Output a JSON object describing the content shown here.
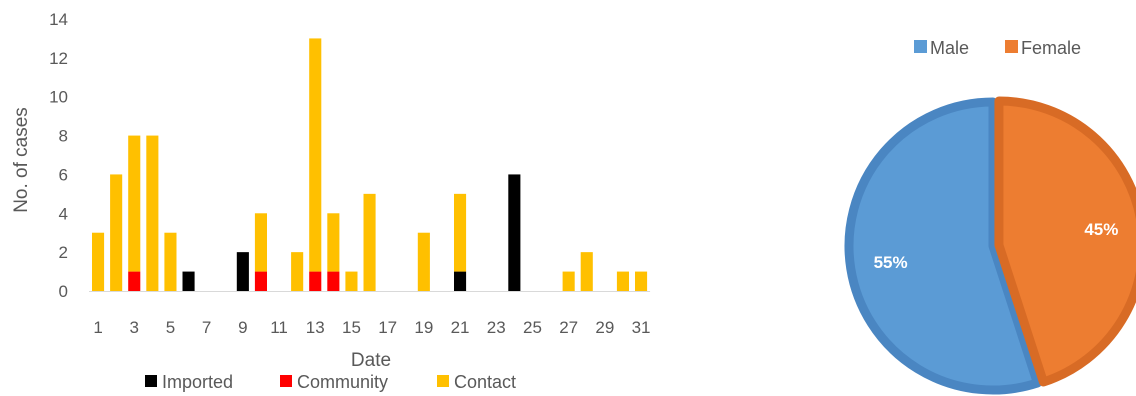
{
  "chart_data": [
    {
      "type": "bar",
      "stacked": true,
      "xlabel": "Date",
      "ylabel": "No. of cases",
      "ylim": [
        0,
        14
      ],
      "yticks": [
        0,
        2,
        4,
        6,
        8,
        10,
        12,
        14
      ],
      "categories": [
        1,
        2,
        3,
        4,
        5,
        6,
        7,
        8,
        9,
        10,
        11,
        12,
        13,
        14,
        15,
        16,
        17,
        18,
        19,
        20,
        21,
        22,
        23,
        24,
        25,
        26,
        27,
        28,
        29,
        30,
        31
      ],
      "xtick_labels": [
        "1",
        "3",
        "5",
        "7",
        "9",
        "11",
        "13",
        "15",
        "17",
        "19",
        "21",
        "23",
        "25",
        "27",
        "29",
        "31"
      ],
      "grid": false,
      "legend_position": "bottom",
      "series": [
        {
          "name": "Imported",
          "color": "#000000",
          "values": [
            0,
            0,
            0,
            0,
            0,
            1,
            0,
            0,
            2,
            0,
            0,
            0,
            0,
            0,
            0,
            0,
            0,
            0,
            0,
            0,
            1,
            0,
            0,
            6,
            0,
            0,
            0,
            0,
            0,
            0,
            0
          ]
        },
        {
          "name": "Community",
          "color": "#ff0000",
          "values": [
            0,
            0,
            1,
            0,
            0,
            0,
            0,
            0,
            0,
            1,
            0,
            0,
            1,
            1,
            0,
            0,
            0,
            0,
            0,
            0,
            0,
            0,
            0,
            0,
            0,
            0,
            0,
            0,
            0,
            0,
            0
          ]
        },
        {
          "name": "Contact",
          "color": "#ffc000",
          "values": [
            3,
            6,
            7,
            8,
            3,
            0,
            0,
            0,
            0,
            3,
            0,
            2,
            12,
            3,
            1,
            5,
            0,
            0,
            3,
            0,
            4,
            0,
            0,
            0,
            0,
            0,
            1,
            2,
            0,
            1,
            1
          ]
        }
      ]
    },
    {
      "type": "pie",
      "legend_position": "top",
      "categories": [
        "Male",
        "Female"
      ],
      "values": [
        55,
        45
      ],
      "labels": [
        "55%",
        "45%"
      ],
      "colors": [
        "#5b9bd5",
        "#ed7d31"
      ]
    }
  ]
}
